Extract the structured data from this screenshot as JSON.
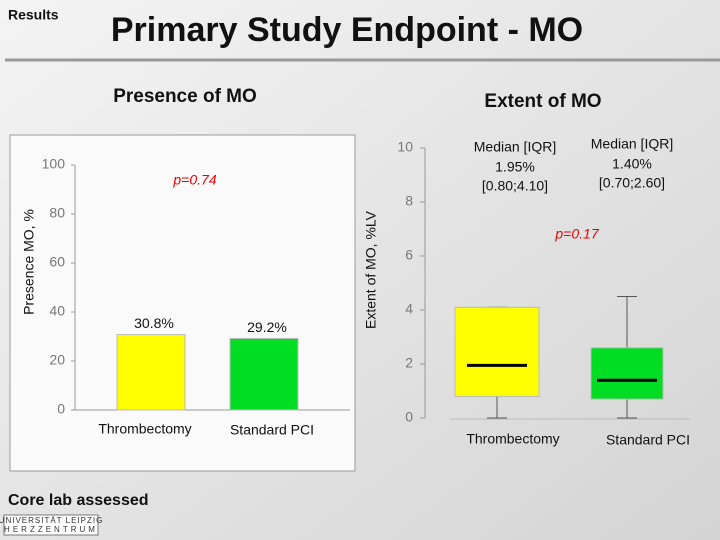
{
  "header": {
    "section": "Results",
    "title": "Primary Study Endpoint - MO"
  },
  "chart_data": [
    {
      "type": "bar",
      "title": "Presence of MO",
      "y_label": "Presence MO, %",
      "categories": [
        "Thrombectomy",
        "Standard PCI"
      ],
      "values": [
        30.8,
        29.2
      ],
      "value_labels": [
        "30.8%",
        "29.2%"
      ],
      "colors": [
        "#ffff00",
        "#00dd22"
      ],
      "ylim": [
        0,
        100
      ],
      "yticks": [
        0,
        20,
        40,
        60,
        80,
        100
      ],
      "annotation": "p=0.74"
    },
    {
      "type": "box",
      "title": "Extent of MO",
      "y_label": "Extent of MO, %LV",
      "categories": [
        "Thrombectomy",
        "Standard PCI"
      ],
      "boxes": [
        {
          "color": "#ffff00",
          "whisker_low": 0,
          "q1": 0.8,
          "median": 1.95,
          "q3": 4.1,
          "whisker_high": 4.1,
          "stat_heading": "Median [IQR]",
          "median_label": "1.95%",
          "iqr_label": "[0.80;4.10]"
        },
        {
          "color": "#00dd22",
          "whisker_low": 0,
          "q1": 0.7,
          "median": 1.4,
          "q3": 2.6,
          "whisker_high": 4.5,
          "stat_heading": "Median [IQR]",
          "median_label": "1.40%",
          "iqr_label": "[0.70;2.60]"
        }
      ],
      "ylim": [
        0,
        10
      ],
      "yticks": [
        0,
        2,
        4,
        6,
        8,
        10
      ],
      "annotation": "p=0.17"
    }
  ],
  "footer": {
    "note": "Core lab assessed",
    "logo_lines": [
      "UNIVERSITÄT LEIPZIG",
      "HERZZENTRUM"
    ]
  }
}
